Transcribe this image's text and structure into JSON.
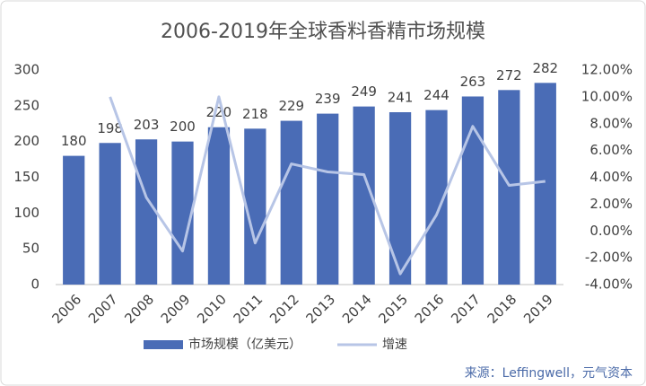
{
  "chart_data": {
    "type": "bar-line",
    "title": "2006-2019年全球香料香精市场规模",
    "categories": [
      "2006",
      "2007",
      "2008",
      "2009",
      "2010",
      "2011",
      "2012",
      "2013",
      "2014",
      "2015",
      "2016",
      "2017",
      "2018",
      "2019"
    ],
    "series": [
      {
        "name": "市场规模（亿美元）",
        "color": "#4a6cb6",
        "type": "bar",
        "values": [
          180,
          198,
          203,
          200,
          220,
          218,
          229,
          239,
          249,
          241,
          244,
          263,
          272,
          282
        ]
      },
      {
        "name": "增速",
        "color": "#b7c5e6",
        "type": "line",
        "axis": "y2",
        "values": [
          null,
          10.0,
          2.5,
          -1.5,
          10.0,
          -0.9,
          5.0,
          4.4,
          4.2,
          -3.2,
          1.2,
          7.8,
          3.4,
          3.7
        ]
      }
    ],
    "ylim": [
      0,
      300
    ],
    "yticks": [
      0,
      50,
      100,
      150,
      200,
      250,
      300
    ],
    "y2lim": [
      -4,
      12
    ],
    "y2ticks": [
      {
        "value": -4,
        "label": "-4.00%"
      },
      {
        "value": -2,
        "label": "-2.00%"
      },
      {
        "value": 0,
        "label": "0.00%"
      },
      {
        "value": 2,
        "label": "2.00%"
      },
      {
        "value": 4,
        "label": "4.00%"
      },
      {
        "value": 6,
        "label": "6.00%"
      },
      {
        "value": 8,
        "label": "8.00%"
      },
      {
        "value": 10,
        "label": "10.00%"
      },
      {
        "value": 12,
        "label": "12.00%"
      }
    ],
    "grid": false,
    "legend": "bottom",
    "source": "来源：Leffingwell，元气资本"
  }
}
